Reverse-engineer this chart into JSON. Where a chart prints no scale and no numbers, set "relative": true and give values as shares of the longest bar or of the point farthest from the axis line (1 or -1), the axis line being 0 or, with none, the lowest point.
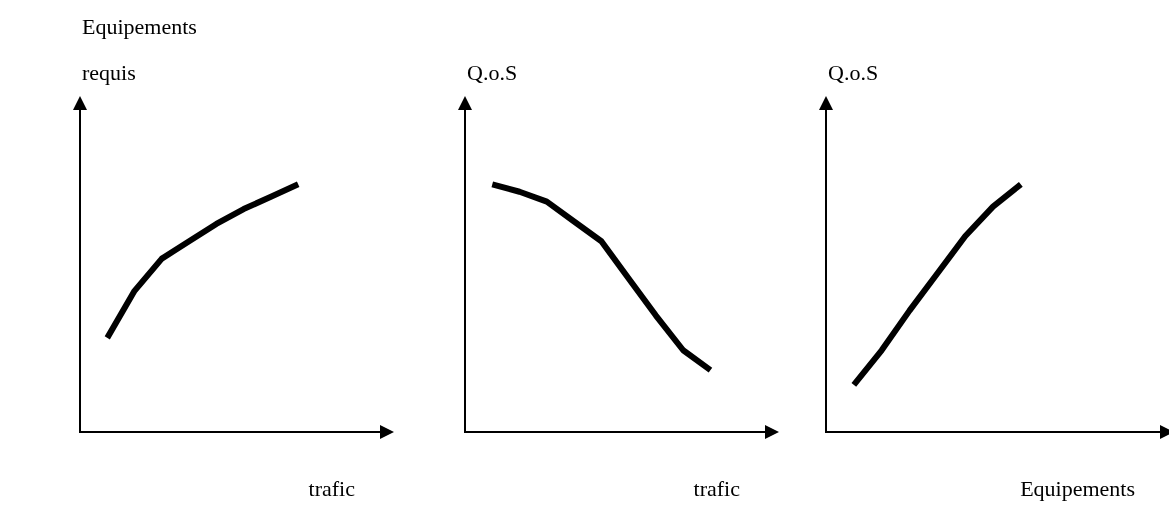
{
  "chart_data": [
    {
      "type": "line",
      "relative": true,
      "ylabel": "Equipements requis",
      "xlabel": "trafic",
      "categories": [
        null,
        null,
        null,
        null,
        null,
        null,
        null,
        null,
        null,
        null,
        null,
        null
      ],
      "series": [
        {
          "color": "#000000",
          "values": [
            null,
            0.38,
            0.57,
            0.7,
            0.77,
            0.84,
            0.9,
            0.95,
            1,
            null,
            null,
            null
          ]
        }
      ],
      "grid": false,
      "legend": false,
      "marker": "none",
      "line_style": "solid"
    },
    {
      "type": "line",
      "relative": true,
      "ylabel": "Q.o.S",
      "xlabel": "trafic",
      "categories": [
        null,
        null,
        null,
        null,
        null,
        null,
        null,
        null,
        null,
        null,
        null,
        null
      ],
      "series": [
        {
          "color": "#000000",
          "values": [
            null,
            1,
            0.97,
            0.93,
            0.85,
            0.77,
            0.62,
            0.47,
            0.33,
            0.25,
            null,
            null
          ]
        }
      ],
      "grid": false,
      "legend": false,
      "marker": "none",
      "line_style": "solid"
    },
    {
      "type": "line",
      "relative": true,
      "ylabel": "Q.o.S",
      "xlabel": "Equipements",
      "categories": [
        null,
        null,
        null,
        null,
        null,
        null,
        null,
        null,
        null,
        null,
        null,
        null,
        null
      ],
      "series": [
        {
          "color": "#000000",
          "values": [
            null,
            0.19,
            0.33,
            0.49,
            0.64,
            0.79,
            0.91,
            1,
            null,
            null,
            null,
            null,
            null
          ]
        }
      ],
      "grid": false,
      "legend": false,
      "marker": "none",
      "line_style": "solid"
    }
  ]
}
